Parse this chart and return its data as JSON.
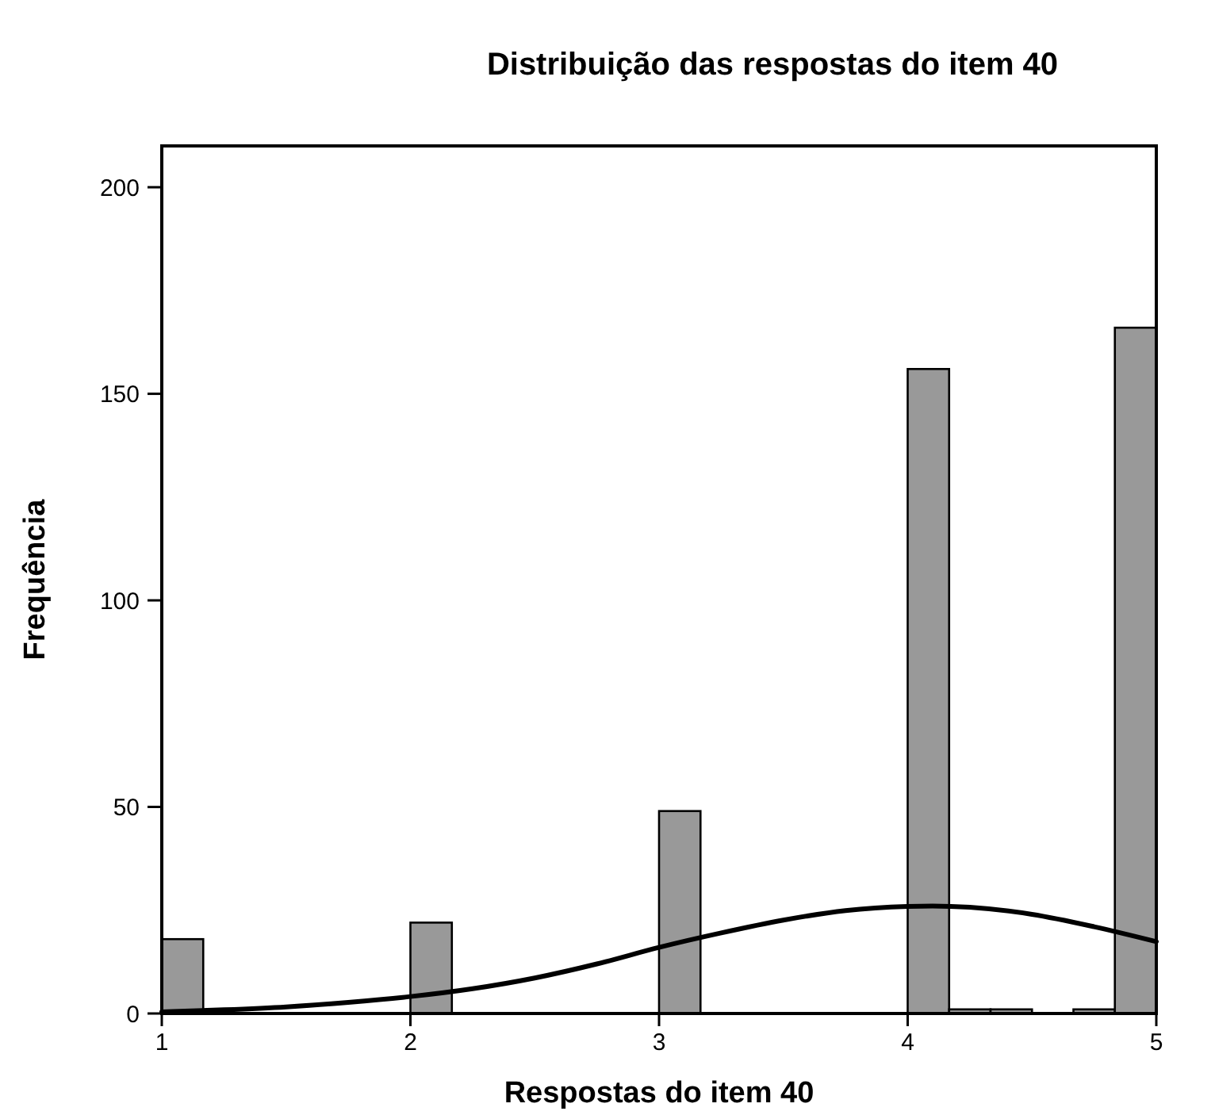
{
  "chart_data": {
    "type": "histogram",
    "title": "Distribuição das respostas do item 40",
    "xlabel": "Respostas do item 40",
    "ylabel": "Frequência",
    "bins": [
      1,
      1.1667,
      1.3333,
      1.5,
      1.6667,
      1.8333,
      2,
      2.1667,
      2.3333,
      2.5,
      2.6667,
      2.8333,
      3,
      3.1667,
      3.3333,
      3.5,
      3.6667,
      3.8333,
      4,
      4.1667,
      4.3333,
      4.5,
      4.6667,
      4.8333,
      5
    ],
    "values": [
      18,
      0,
      0,
      0,
      0,
      0,
      22,
      0,
      0,
      0,
      0,
      0,
      49,
      0,
      0,
      0,
      0,
      0,
      156,
      1,
      1,
      0,
      1,
      166
    ],
    "color": "#999999",
    "series": [
      {
        "type": "line",
        "color": "#000000",
        "x": [
          1,
          1.25,
          1.5,
          1.75,
          2,
          2.25,
          2.5,
          2.75,
          3,
          3.25,
          3.5,
          3.75,
          4,
          4.1,
          4.25,
          4.5,
          4.75,
          5
        ],
        "values": [
          0.4,
          0.9,
          1.6,
          2.7,
          4.1,
          6,
          8.6,
          12,
          16,
          19.5,
          22.6,
          24.9,
          25.9,
          26,
          25.7,
          24,
          21,
          17.4
        ]
      }
    ],
    "xlim": [
      1,
      5
    ],
    "xticks": [
      1,
      2,
      3,
      4,
      5
    ],
    "ylim": [
      0,
      210
    ],
    "yticks": [
      0,
      50,
      100,
      150,
      200
    ],
    "grid": false
  }
}
